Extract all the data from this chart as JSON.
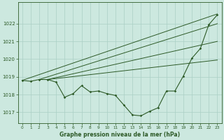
{
  "background_color": "#cce8df",
  "line_color": "#2d5a27",
  "grid_color": "#aacfc5",
  "xlim": [
    -0.5,
    23.5
  ],
  "ylim": [
    1016.4,
    1023.2
  ],
  "yticks": [
    1017,
    1018,
    1019,
    1020,
    1021,
    1022
  ],
  "xticks": [
    0,
    1,
    2,
    3,
    4,
    5,
    6,
    7,
    8,
    9,
    10,
    11,
    12,
    13,
    14,
    15,
    16,
    17,
    18,
    19,
    20,
    21,
    22,
    23
  ],
  "xlabel": "Graphe pression niveau de la mer (hPa)",
  "hours": [
    0,
    1,
    2,
    3,
    4,
    5,
    6,
    7,
    8,
    9,
    10,
    11,
    12,
    13,
    14,
    15,
    16,
    17,
    18,
    19,
    20,
    21,
    22,
    23
  ],
  "main_y": [
    1018.8,
    1018.75,
    1018.85,
    1018.85,
    1018.7,
    1017.85,
    1018.05,
    1018.5,
    1018.15,
    1018.2,
    1018.05,
    1017.95,
    1017.4,
    1016.85,
    1016.8,
    1017.05,
    1017.25,
    1018.2,
    1018.2,
    1019.05,
    1020.05,
    1020.6,
    1021.95,
    1022.5
  ],
  "upper_line": [
    [
      0,
      1018.8
    ],
    [
      23,
      1022.55
    ]
  ],
  "mid_line1": [
    [
      2,
      1018.85
    ],
    [
      23,
      1022.0
    ]
  ],
  "mid_line2": [
    [
      3,
      1018.85
    ],
    [
      23,
      1021.0
    ]
  ],
  "lower_line": [
    [
      3,
      1018.85
    ],
    [
      23,
      1019.95
    ]
  ]
}
